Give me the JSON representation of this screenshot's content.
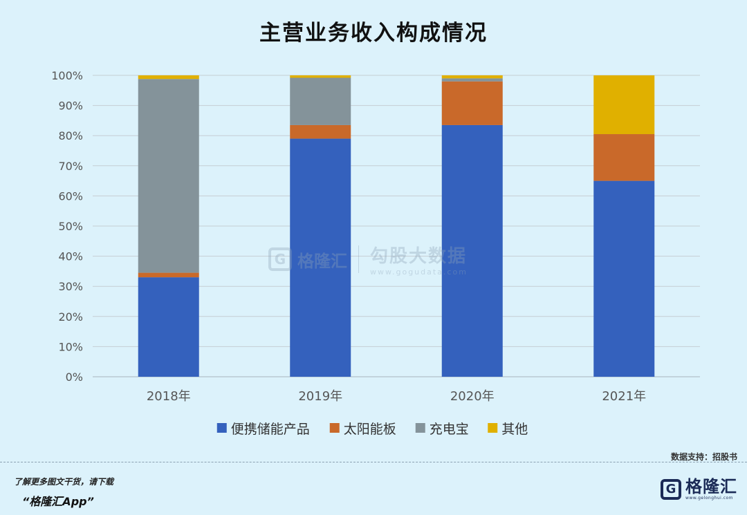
{
  "chart_data": {
    "type": "bar",
    "stacked": true,
    "title": "主营业务收入构成情况",
    "categories": [
      "2018年",
      "2019年",
      "2020年",
      "2021年"
    ],
    "ylim": [
      0,
      100
    ],
    "yticks": [
      "0%",
      "10%",
      "20%",
      "30%",
      "40%",
      "50%",
      "60%",
      "70%",
      "80%",
      "90%",
      "100%"
    ],
    "grid": true,
    "legend_position": "bottom",
    "series": [
      {
        "name": "便携储能产品",
        "color": "#3461bd",
        "values": [
          33.0,
          79.0,
          83.5,
          65.0
        ]
      },
      {
        "name": "太阳能板",
        "color": "#c9692a",
        "values": [
          1.5,
          4.5,
          14.5,
          15.5
        ]
      },
      {
        "name": "充电宝",
        "color": "#84939a",
        "values": [
          64.3,
          15.7,
          1.0,
          0.0
        ]
      },
      {
        "name": "其他",
        "color": "#e0b000",
        "values": [
          1.2,
          0.8,
          1.0,
          19.5
        ]
      }
    ]
  },
  "watermark": {
    "logo_glyph": "G",
    "brand": "格隆汇",
    "name": "勾股大数据",
    "url": "www.gogudata.com"
  },
  "source": "数据支持：招股书",
  "footer": {
    "line1": "了解更多图文干货，请下载",
    "line2": "“格隆汇App”",
    "logo_glyph": "G",
    "brand": "格隆汇",
    "url": "www.gelonghui.com"
  }
}
